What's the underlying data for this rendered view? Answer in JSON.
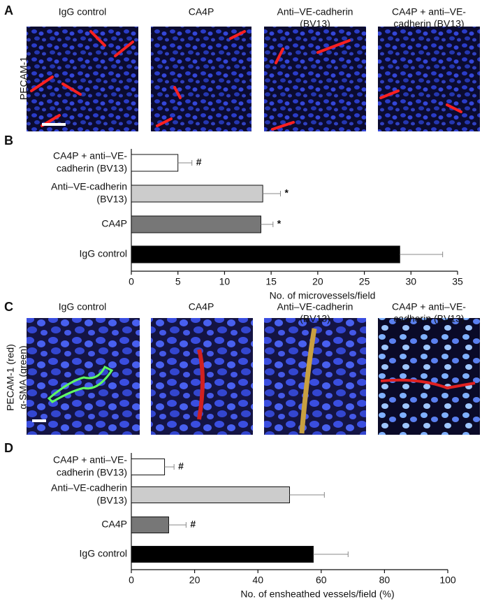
{
  "panel_a": {
    "label": "A",
    "stain": [
      "PECAM-1"
    ],
    "columns": [
      [
        "IgG control"
      ],
      [
        "CA4P"
      ],
      [
        "Anti–VE-cadherin",
        "(BV13)"
      ],
      [
        "CA4P + anti–VE-",
        "cadherin (BV13)"
      ]
    ]
  },
  "panel_c": {
    "label": "C",
    "stain": [
      "PECAM-1 (red)",
      "α-SMA (green)"
    ],
    "columns": [
      [
        "IgG control"
      ],
      [
        "CA4P"
      ],
      [
        "Anti–VE-cadherin",
        "(BV13)"
      ],
      [
        "CA4P + anti–VE-",
        "cadherin (BV13)"
      ]
    ]
  },
  "chart_data": [
    {
      "type": "bar",
      "orientation": "horizontal",
      "panel_label": "B",
      "categories": [
        [
          "CA4P + anti–VE-",
          "cadherin (BV13)"
        ],
        [
          "Anti–VE-cadherin",
          "(BV13)"
        ],
        [
          "CA4P"
        ],
        [
          "IgG control"
        ]
      ],
      "values": [
        5.0,
        14.1,
        13.9,
        28.8
      ],
      "errors": [
        1.5,
        1.9,
        1.3,
        4.6
      ],
      "colors": [
        "#ffffff",
        "#cccccc",
        "#777777",
        "#000000"
      ],
      "annotations": [
        "#",
        "*",
        "*",
        null
      ],
      "xlabel": "No. of microvessels/field",
      "xlim": [
        0,
        35
      ],
      "xticks": [
        0,
        5,
        10,
        15,
        20,
        25,
        30,
        35
      ]
    },
    {
      "type": "bar",
      "orientation": "horizontal",
      "panel_label": "D",
      "categories": [
        [
          "CA4P + anti–VE-",
          "cadherin (BV13)"
        ],
        [
          "Anti–VE-cadherin",
          "(BV13)"
        ],
        [
          "CA4P"
        ],
        [
          "IgG control"
        ]
      ],
      "values": [
        10.5,
        50,
        11.8,
        57.5
      ],
      "errors": [
        3,
        11,
        5.5,
        11
      ],
      "colors": [
        "#ffffff",
        "#cccccc",
        "#777777",
        "#000000"
      ],
      "annotations": [
        "#",
        null,
        "#",
        null
      ],
      "xlabel": "No. of ensheathed vessels/field (%)",
      "xlim": [
        0,
        100
      ],
      "xticks": [
        0,
        20,
        40,
        60,
        80,
        100
      ]
    }
  ]
}
